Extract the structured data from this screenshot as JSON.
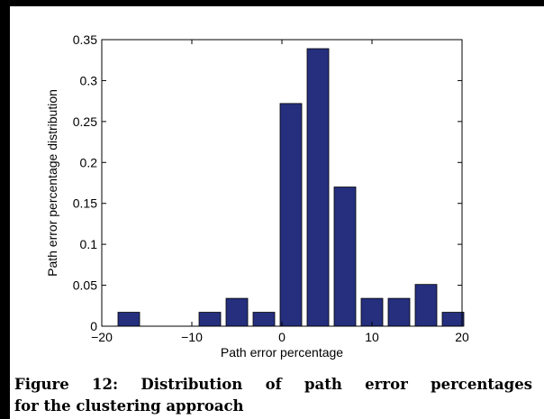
{
  "chart_data": {
    "type": "bar",
    "x": [
      -17,
      -14,
      -11,
      -8,
      -5,
      -2,
      1,
      4,
      7,
      10,
      13,
      16,
      19
    ],
    "values": [
      0.017,
      0,
      0,
      0.017,
      0.034,
      0.017,
      0.272,
      0.339,
      0.17,
      0.034,
      0.034,
      0.051,
      0.017
    ],
    "bar_color": "#252f7e",
    "xlabel": "Path error percentage",
    "ylabel": "Path error percentage distribution",
    "xlim": [
      -20,
      20
    ],
    "ylim": [
      0,
      0.35
    ],
    "xticks": [
      "-20",
      "-10",
      "0",
      "10",
      "20"
    ],
    "yticks": [
      "0",
      "0.05",
      "0.1",
      "0.15",
      "0.2",
      "0.25",
      "0.3",
      "0.35"
    ],
    "grid": false
  },
  "caption": {
    "line1": "Figure 12: Distribution of path error percentages",
    "line2": "for the clustering approach"
  }
}
